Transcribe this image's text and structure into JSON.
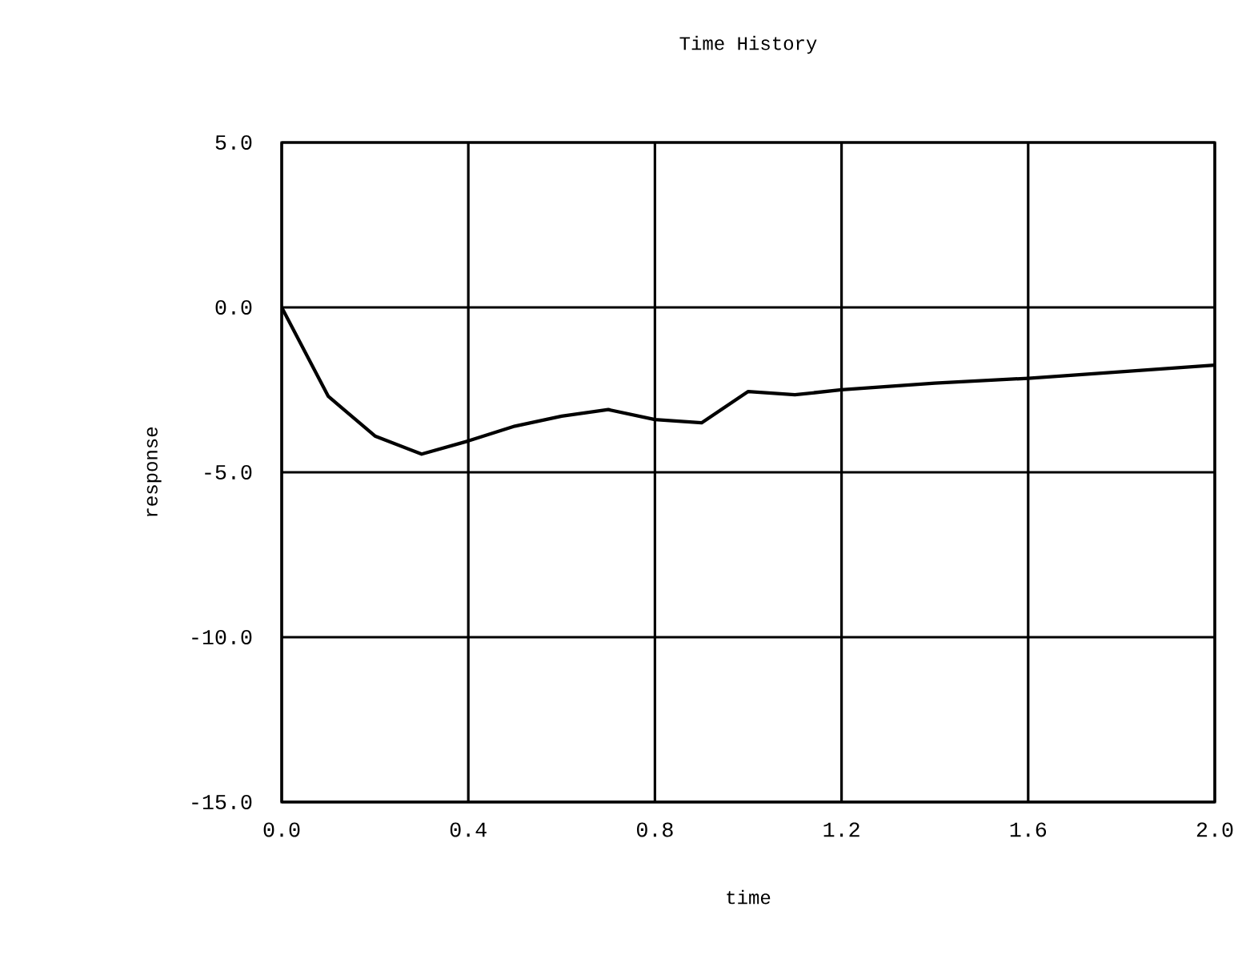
{
  "chart_data": {
    "type": "line",
    "title": "Time History",
    "xlabel": "time",
    "ylabel": "response",
    "x": [
      0,
      0.1,
      0.2,
      0.3,
      0.4,
      0.5,
      0.6,
      0.7,
      0.8,
      0.9,
      1.0,
      1.1,
      1.2,
      1.4,
      1.6,
      1.8,
      2.0
    ],
    "values": [
      0,
      -2.7,
      -3.9,
      -4.45,
      -4.05,
      -3.6,
      -3.3,
      -3.1,
      -3.4,
      -3.5,
      -2.55,
      -2.65,
      -2.5,
      -2.3,
      -2.15,
      -1.95,
      -1.75
    ],
    "color": "#000000",
    "xlim": [
      0,
      2
    ],
    "ylim": [
      -15,
      5
    ],
    "xticks": [
      {
        "value": 0,
        "label": "0.0"
      },
      {
        "value": 0.4,
        "label": "0.4"
      },
      {
        "value": 0.8,
        "label": "0.8"
      },
      {
        "value": 1.2,
        "label": "1.2"
      },
      {
        "value": 1.6,
        "label": "1.6"
      },
      {
        "value": 2,
        "label": "2.0"
      }
    ],
    "yticks": [
      {
        "value": -15,
        "label": "-15.0"
      },
      {
        "value": -10,
        "label": "-10.0"
      },
      {
        "value": -5,
        "label": "-5.0"
      },
      {
        "value": 0,
        "label": "0.0"
      },
      {
        "value": 5,
        "label": "5.0"
      }
    ],
    "grid": true,
    "marker": "none",
    "line_style": "solid"
  }
}
